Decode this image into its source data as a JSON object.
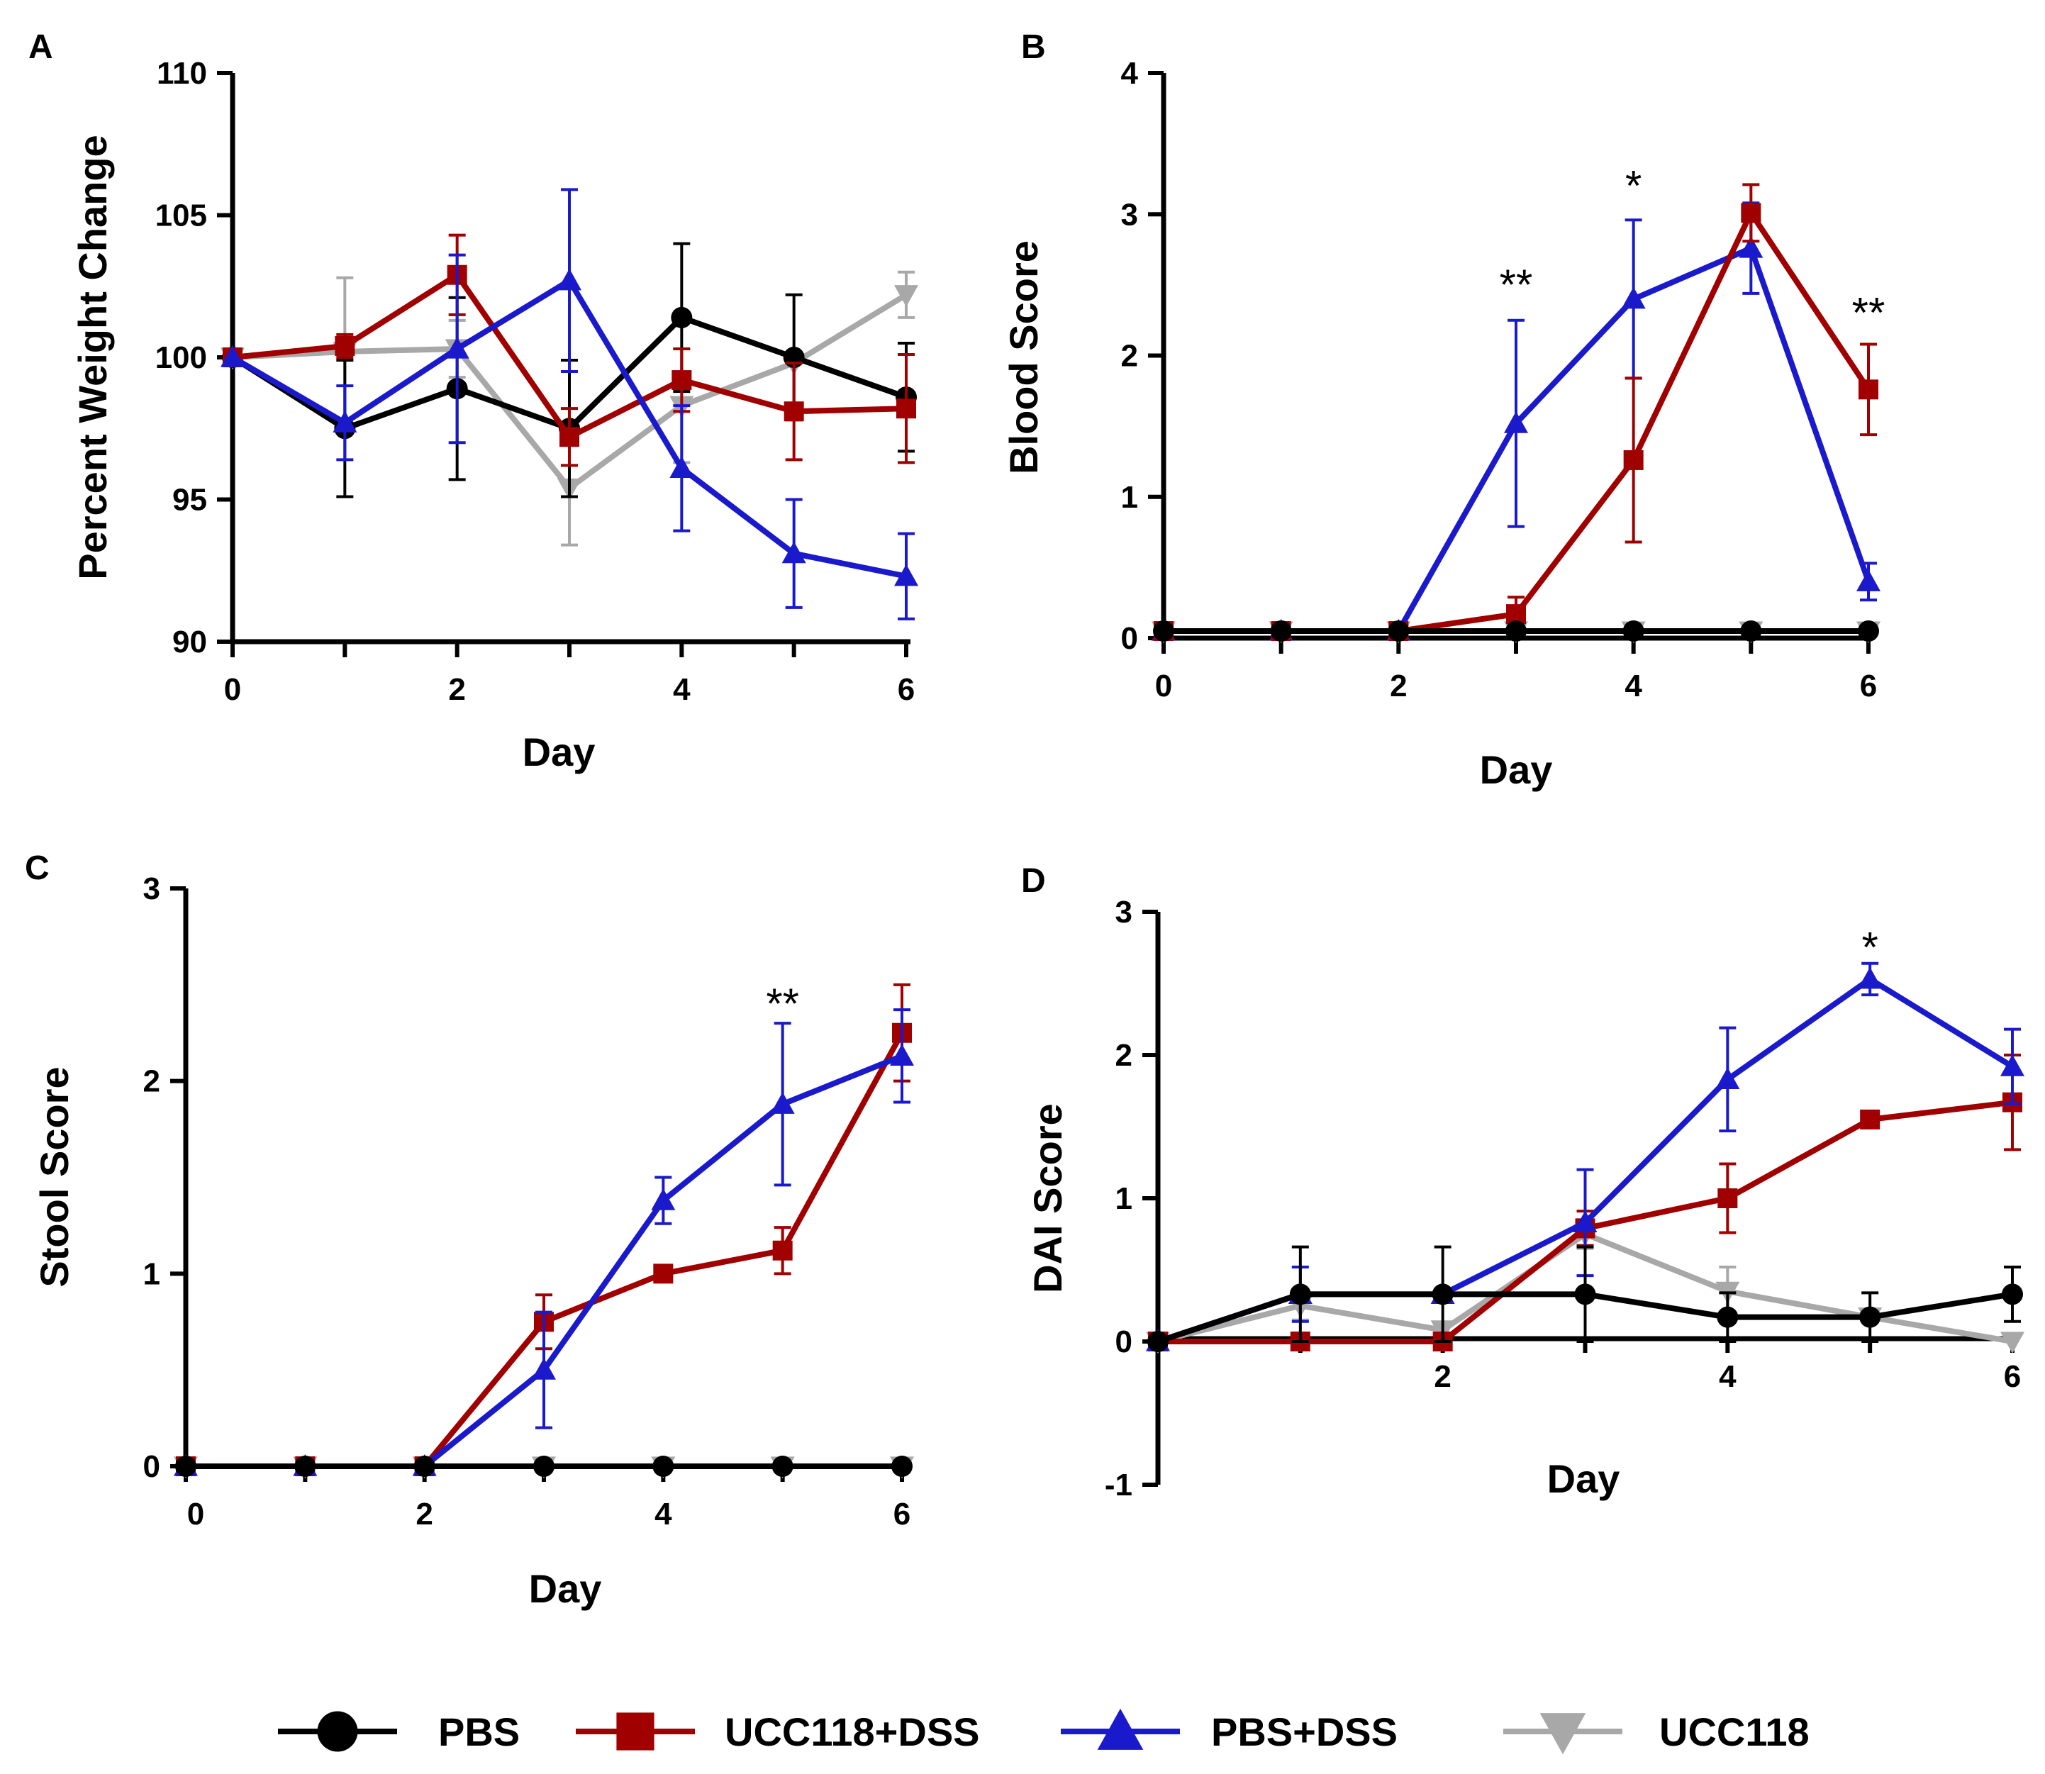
{
  "figure": {
    "legend": [
      {
        "name": "PBS",
        "color": "#000000",
        "marker": "circle"
      },
      {
        "name": "UCC118+DSS",
        "color": "#a00000",
        "marker": "square"
      },
      {
        "name": "PBS+DSS",
        "color": "#1a1acc",
        "marker": "triangle-up"
      },
      {
        "name": "UCC118",
        "color": "#a8a8a8",
        "marker": "triangle-down"
      }
    ]
  },
  "chart_data": [
    {
      "panel": "A",
      "type": "line",
      "title": "",
      "xlabel": "Day",
      "ylabel": "Percent Weight Change",
      "xlim": [
        0,
        6
      ],
      "ylim": [
        90,
        110
      ],
      "xticks": [
        0,
        2,
        4,
        6
      ],
      "xtick_labels": [
        "0",
        "2",
        "4",
        "6"
      ],
      "yticks": [
        90,
        95,
        100,
        105,
        110
      ],
      "ytick_labels": [
        "90",
        "95",
        "100",
        "105",
        "110"
      ],
      "x": [
        0,
        1,
        2,
        3,
        4,
        5,
        6
      ],
      "series": [
        {
          "name": "UCC118",
          "values": [
            100.0,
            100.2,
            100.3,
            95.4,
            98.3,
            99.8,
            102.2
          ],
          "errors": [
            0,
            2.6,
            1.0,
            2.0,
            2.0,
            0,
            0.8
          ]
        },
        {
          "name": "PBS",
          "values": [
            100.0,
            97.5,
            98.9,
            97.5,
            101.4,
            100.0,
            98.6
          ],
          "errors": [
            0,
            2.4,
            3.2,
            2.4,
            2.6,
            2.2,
            1.9
          ]
        },
        {
          "name": "UCC118+DSS",
          "values": [
            100.0,
            100.4,
            102.9,
            97.2,
            99.2,
            98.1,
            98.2
          ],
          "errors": [
            0,
            0.4,
            1.4,
            1.0,
            1.1,
            1.7,
            1.9
          ]
        },
        {
          "name": "PBS+DSS",
          "values": [
            100.0,
            97.7,
            100.3,
            102.7,
            96.1,
            93.1,
            92.3
          ],
          "errors": [
            0,
            1.3,
            3.3,
            3.2,
            2.2,
            1.9,
            1.5
          ]
        }
      ],
      "annotations": []
    },
    {
      "panel": "B",
      "type": "line",
      "title": "",
      "xlabel": "Day",
      "ylabel": "Blood Score",
      "xlim": [
        0,
        6
      ],
      "ylim": [
        0,
        4
      ],
      "xticks": [
        0,
        2,
        4,
        6
      ],
      "xtick_labels": [
        "0",
        "2",
        "4",
        "6"
      ],
      "yticks": [
        0,
        1,
        2,
        3,
        4
      ],
      "ytick_labels": [
        "0",
        "1",
        "2",
        "3",
        "4"
      ],
      "x": [
        0,
        1,
        2,
        3,
        4,
        5,
        6
      ],
      "series": [
        {
          "name": "UCC118",
          "values": [
            0.05,
            0.05,
            0.05,
            0.05,
            0.05,
            0.05,
            0.05
          ],
          "errors": [
            0,
            0,
            0,
            0,
            0,
            0,
            0
          ]
        },
        {
          "name": "PBS+DSS",
          "values": [
            0.05,
            0.05,
            0.05,
            1.52,
            2.4,
            2.76,
            0.4
          ],
          "errors": [
            0,
            0,
            0,
            0.73,
            0.56,
            0.32,
            0.13
          ]
        },
        {
          "name": "UCC118+DSS",
          "values": [
            0.05,
            0.05,
            0.05,
            0.17,
            1.26,
            3.01,
            1.76
          ],
          "errors": [
            0,
            0,
            0,
            0.12,
            0.58,
            0.2,
            0.32
          ]
        },
        {
          "name": "PBS",
          "values": [
            0.05,
            0.05,
            0.05,
            0.05,
            0.05,
            0.05,
            0.05
          ],
          "errors": [
            0,
            0,
            0,
            0,
            0,
            0,
            0
          ]
        }
      ],
      "annotations": [
        {
          "text": "**",
          "x": 3,
          "y": 2.5
        },
        {
          "text": "*",
          "x": 4,
          "y": 3.2
        },
        {
          "text": "**",
          "x": 6,
          "y": 2.3
        }
      ]
    },
    {
      "panel": "C",
      "type": "line",
      "title": "",
      "xlabel": "Day",
      "ylabel": "Stool Score",
      "xlim": [
        0,
        6
      ],
      "ylim": [
        0,
        3
      ],
      "xticks": [
        0,
        2,
        4,
        6
      ],
      "xtick_labels": [
        "0",
        "2",
        "4",
        "6"
      ],
      "yticks": [
        0,
        1,
        2,
        3
      ],
      "ytick_labels": [
        "0",
        "1",
        "2",
        "3"
      ],
      "x": [
        0,
        1,
        2,
        3,
        4,
        5,
        6
      ],
      "series": [
        {
          "name": "UCC118",
          "values": [
            0,
            0,
            0,
            0,
            0,
            0,
            0
          ],
          "errors": [
            0,
            0,
            0,
            0,
            0,
            0,
            0
          ]
        },
        {
          "name": "UCC118+DSS",
          "values": [
            0,
            0,
            0,
            0.75,
            1.0,
            1.12,
            2.25
          ],
          "errors": [
            0,
            0,
            0,
            0.14,
            0.02,
            0.12,
            0.25
          ]
        },
        {
          "name": "PBS+DSS",
          "values": [
            0,
            0,
            0,
            0.5,
            1.38,
            1.88,
            2.13
          ],
          "errors": [
            0,
            0,
            0,
            0.3,
            0.12,
            0.42,
            0.24
          ]
        },
        {
          "name": "PBS",
          "values": [
            0,
            0,
            0,
            0,
            0,
            0,
            0
          ],
          "errors": [
            0,
            0,
            0,
            0,
            0,
            0,
            0
          ]
        }
      ],
      "annotations": [
        {
          "text": "**",
          "x": 5,
          "y": 2.4
        }
      ]
    },
    {
      "panel": "D",
      "type": "line",
      "title": "",
      "xlabel": "Day",
      "ylabel": "DAI Score",
      "xlim": [
        0,
        6
      ],
      "ylim": [
        -1,
        3
      ],
      "xticks": [
        2,
        4,
        6
      ],
      "xtick_labels": [
        "2",
        "4",
        "6"
      ],
      "yticks": [
        -1,
        0,
        1,
        2,
        3
      ],
      "ytick_labels": [
        "-1",
        "0",
        "1",
        "2",
        "3"
      ],
      "x": [
        0,
        1,
        2,
        3,
        4,
        5,
        6
      ],
      "series": [
        {
          "name": "UCC118",
          "values": [
            0,
            0.25,
            0.08,
            0.75,
            0.35,
            0.17,
            0
          ],
          "errors": [
            0,
            0.1,
            0,
            0.1,
            0.17,
            0,
            0
          ]
        },
        {
          "name": "UCC118+DSS",
          "values": [
            0,
            0,
            0,
            0.79,
            1.0,
            1.55,
            1.67
          ],
          "errors": [
            0,
            0,
            0,
            0.12,
            0.24,
            0.04,
            0.33
          ]
        },
        {
          "name": "PBS+DSS",
          "values": [
            0,
            0.33,
            0.33,
            0.83,
            1.83,
            2.53,
            1.92
          ],
          "errors": [
            0,
            0.19,
            0,
            0.37,
            0.36,
            0.11,
            0.26
          ]
        },
        {
          "name": "PBS",
          "values": [
            0,
            0.33,
            0.33,
            0.33,
            0.17,
            0.17,
            0.33
          ],
          "errors": [
            0,
            0.33,
            0.33,
            0.33,
            0.17,
            0.17,
            0.19
          ]
        }
      ],
      "annotations": [
        {
          "text": "*",
          "x": 5,
          "y": 2.75
        }
      ]
    }
  ]
}
